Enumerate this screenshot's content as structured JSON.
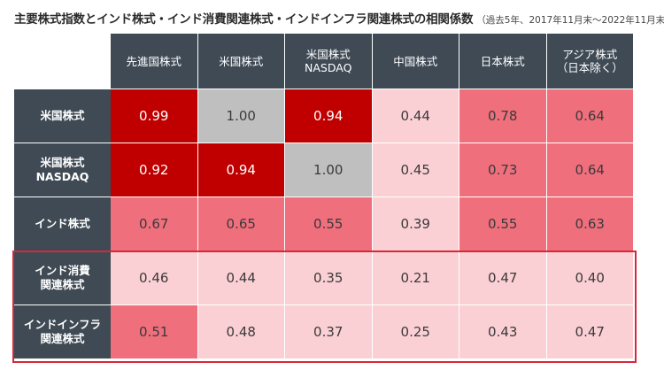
{
  "title": {
    "main": "主要株式指数とインド株式・インド消費関連株式・インドインフラ関連株式の相関係数",
    "sub": "（過去5年、2017年11月末～2022年11月末）"
  },
  "chart_data": {
    "type": "heatmap",
    "columns": [
      "先進国株式",
      "米国株式",
      "米国株式\nNASDAQ",
      "中国株式",
      "日本株式",
      "アジア株式\n（日本除く）"
    ],
    "rows": [
      {
        "label": "米国株式",
        "values": [
          "0.99",
          "1.00",
          "0.94",
          "0.44",
          "0.78",
          "0.64"
        ]
      },
      {
        "label": "米国株式\nNASDAQ",
        "values": [
          "0.92",
          "0.94",
          "1.00",
          "0.45",
          "0.73",
          "0.64"
        ]
      },
      {
        "label": "インド株式",
        "values": [
          "0.67",
          "0.65",
          "0.55",
          "0.39",
          "0.55",
          "0.63"
        ]
      },
      {
        "label": "インド消費\n関連株式",
        "values": [
          "0.46",
          "0.44",
          "0.35",
          "0.21",
          "0.47",
          "0.40"
        ]
      },
      {
        "label": "インドインフラ\n関連株式",
        "values": [
          "0.51",
          "0.48",
          "0.37",
          "0.25",
          "0.43",
          "0.47"
        ]
      }
    ],
    "highlighted_rows": [
      "インド消費\n関連株式",
      "インドインフラ\n関連株式"
    ],
    "colors": {
      "self_correlation": "#bfbfbf",
      "very_high": "#c00000",
      "high": "#ef6f7c",
      "low": "#fbd0d4",
      "highlight_border": "#d6283a",
      "header_bg": "#3f4a55"
    }
  }
}
